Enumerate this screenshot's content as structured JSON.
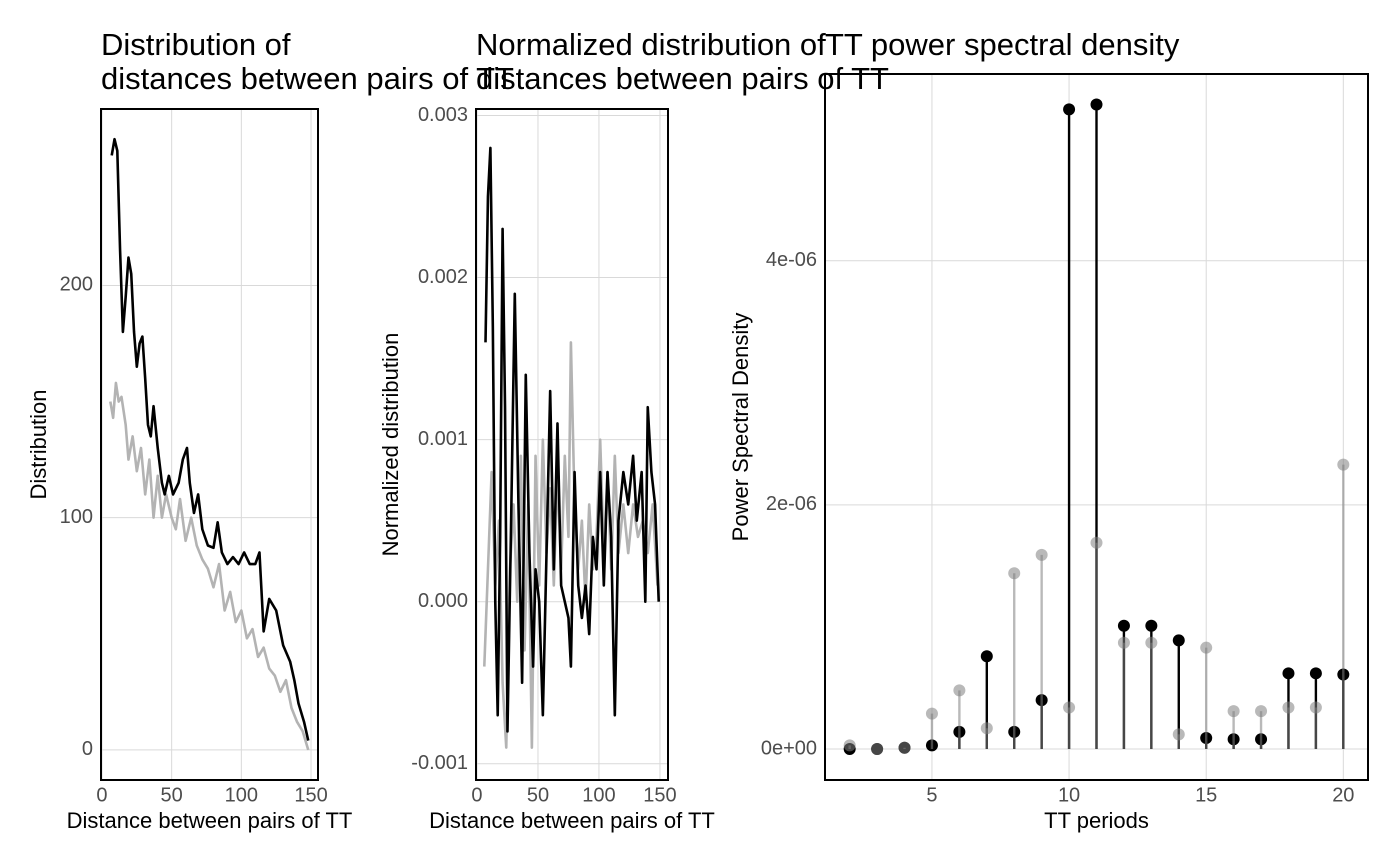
{
  "chart_data": [
    {
      "type": "line",
      "title": [
        "Distribution of",
        "distances between pairs of TT"
      ],
      "xlabel": "Distance between pairs of TT",
      "ylabel": "Distribution",
      "xlim": [
        -0.7,
        155
      ],
      "xticks": [
        0,
        50,
        100,
        150
      ],
      "ylim": [
        -13,
        276
      ],
      "yticks": [
        0,
        100,
        200
      ],
      "grid": true,
      "series": [
        {
          "color": "#b3b3b3",
          "x": [
            6,
            8,
            10,
            12,
            14,
            17,
            19,
            22,
            25,
            28,
            31,
            34,
            37,
            40,
            43,
            46,
            50,
            53,
            56,
            60,
            64,
            68,
            72,
            76,
            80,
            84,
            88,
            92,
            96,
            100,
            104,
            108,
            112,
            116,
            120,
            124,
            128,
            132,
            136,
            140,
            144,
            148
          ],
          "values": [
            150,
            143,
            158,
            150,
            152,
            140,
            125,
            135,
            120,
            130,
            110,
            125,
            100,
            118,
            100,
            110,
            100,
            95,
            108,
            90,
            100,
            88,
            82,
            78,
            70,
            80,
            60,
            68,
            55,
            60,
            48,
            52,
            40,
            44,
            35,
            32,
            25,
            30,
            18,
            12,
            8,
            0
          ]
        },
        {
          "color": "#000000",
          "x": [
            7,
            9,
            11,
            13,
            15,
            17,
            19,
            21,
            23,
            25,
            27,
            29,
            31,
            33,
            35,
            37,
            40,
            43,
            45,
            48,
            51,
            55,
            58,
            61,
            63,
            66,
            69,
            72,
            76,
            80,
            83,
            86,
            90,
            94,
            98,
            102,
            106,
            110,
            113,
            116,
            120,
            125,
            130,
            135,
            138,
            141,
            145,
            148
          ],
          "values": [
            256,
            263,
            258,
            215,
            180,
            195,
            212,
            205,
            180,
            165,
            175,
            178,
            160,
            140,
            135,
            148,
            130,
            115,
            110,
            118,
            110,
            115,
            125,
            130,
            115,
            102,
            110,
            95,
            88,
            87,
            98,
            85,
            80,
            83,
            80,
            85,
            80,
            80,
            85,
            51,
            65,
            60,
            45,
            38,
            30,
            20,
            12,
            4
          ]
        }
      ]
    },
    {
      "type": "line",
      "title": [
        "Normalized distribution of",
        "distances between pairs of TT"
      ],
      "xlabel": "Distance between pairs of TT",
      "ylabel": "Normalized distribution",
      "xlim": [
        -0.8,
        156.6
      ],
      "xticks": [
        0,
        50,
        100,
        150
      ],
      "ylim": [
        -0.0011,
        0.00304
      ],
      "yticks": [
        {
          "value": -0.001,
          "label": "-0.001"
        },
        {
          "value": 0,
          "label": "0.000"
        },
        {
          "value": 0.001,
          "label": "0.001"
        },
        {
          "value": 0.002,
          "label": "0.002"
        },
        {
          "value": 0.003,
          "label": "0.003"
        }
      ],
      "grid": true,
      "series": [
        {
          "color": "#b3b3b3",
          "x": [
            6,
            9,
            12,
            15,
            18,
            21,
            24,
            27,
            30,
            33,
            36,
            39,
            42,
            45,
            48,
            51,
            54,
            57,
            60,
            63,
            66,
            69,
            72,
            75,
            77,
            80,
            83,
            86,
            89,
            92,
            95,
            98,
            101,
            104,
            107,
            110,
            113,
            116,
            120,
            124,
            128,
            132,
            136,
            140,
            144,
            148
          ],
          "values": [
            -0.0004,
            0.0002,
            0.0008,
            0.0001,
            0.0005,
            -0.0005,
            -0.0009,
            0.0002,
            0.0006,
            0.0,
            0.0009,
            -0.0003,
            0.0006,
            -0.0009,
            0.0009,
            0.0001,
            0.001,
            0.0003,
            0.0007,
            0.0001,
            0.0008,
            0.0002,
            0.0009,
            0.0004,
            0.0016,
            0.0006,
            0.0002,
            0.0005,
            0.0,
            0.0006,
            0.0002,
            0.0004,
            0.001,
            0.0003,
            0.0008,
            0.0002,
            0.0009,
            0.0003,
            0.0006,
            0.0003,
            0.0006,
            0.0004,
            0.0005,
            0.0003,
            0.0006,
            0.0001
          ]
        },
        {
          "color": "#000000",
          "x": [
            7,
            9,
            11,
            13,
            15,
            17,
            19,
            21,
            23,
            25,
            28,
            31,
            34,
            37,
            40,
            43,
            46,
            48,
            51,
            54,
            57,
            60,
            63,
            66,
            69,
            72,
            75,
            77,
            80,
            83,
            86,
            89,
            92,
            95,
            98,
            101,
            104,
            107,
            110,
            113,
            116,
            120,
            124,
            128,
            131,
            135,
            138,
            140,
            143,
            146,
            149
          ],
          "values": [
            0.0016,
            0.0025,
            0.0028,
            0.0017,
            0.0,
            -0.0007,
            0.0004,
            0.0023,
            0.0012,
            -0.0008,
            0.0005,
            0.0019,
            0.0006,
            -0.0005,
            0.0014,
            0.0003,
            -0.0004,
            0.0002,
            0.0,
            -0.0007,
            0.0003,
            0.0013,
            0.0002,
            0.0011,
            0.0001,
            0.0,
            -0.0001,
            -0.0004,
            0.0008,
            0.0001,
            -0.0001,
            0.0001,
            -0.0002,
            0.0004,
            0.0002,
            0.0008,
            0.0001,
            0.0008,
            0.0004,
            -0.0007,
            0.0005,
            0.0008,
            0.0006,
            0.0009,
            0.0005,
            0.0008,
            0.0,
            0.0012,
            0.0008,
            0.0006,
            0.0
          ]
        }
      ]
    },
    {
      "type": "lollipop",
      "title": [
        "TT power spectral density"
      ],
      "xlabel": "TT periods",
      "ylabel": "Power Spectral Density",
      "xlim": [
        1.1,
        20.9
      ],
      "xticks": [
        5,
        10,
        15,
        20
      ],
      "ylim": [
        -2.54e-07,
        5.53e-06
      ],
      "yticks": [
        {
          "value": 0,
          "label": "0e+00"
        },
        {
          "value": 2e-06,
          "label": "2e-06"
        },
        {
          "value": 4e-06,
          "label": "4e-06"
        }
      ],
      "grid": true,
      "series": [
        {
          "color": "#000000",
          "x": [
            2,
            3,
            4,
            5,
            6,
            7,
            8,
            9,
            10,
            11,
            12,
            13,
            14,
            15,
            16,
            17,
            18,
            19,
            20
          ],
          "values": [
            0,
            0,
            1e-08,
            3e-08,
            1.4e-07,
            7.6e-07,
            1.4e-07,
            4e-07,
            5.24e-06,
            5.28e-06,
            1.01e-06,
            1.01e-06,
            8.9e-07,
            9e-08,
            8e-08,
            8e-08,
            6.2e-07,
            6.2e-07,
            6.1e-07
          ]
        },
        {
          "color": "#808080",
          "x": [
            2,
            3,
            4,
            5,
            6,
            7,
            8,
            9,
            10,
            11,
            12,
            13,
            14,
            15,
            16,
            17,
            18,
            19,
            20
          ],
          "values": [
            3e-08,
            0,
            1e-08,
            2.9e-07,
            4.8e-07,
            1.7e-07,
            1.44e-06,
            1.59e-06,
            3.4e-07,
            1.69e-06,
            8.7e-07,
            8.7e-07,
            1.2e-07,
            8.3e-07,
            3.1e-07,
            3.1e-07,
            3.4e-07,
            3.4e-07,
            2.33e-06
          ]
        }
      ]
    }
  ]
}
